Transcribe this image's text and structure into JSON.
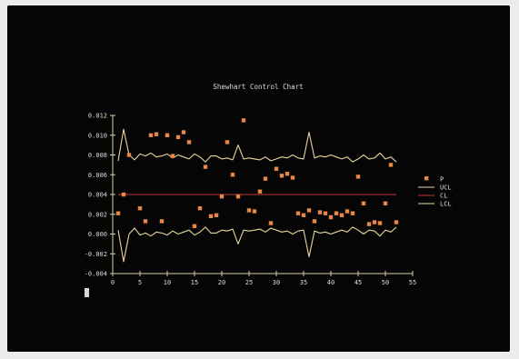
{
  "colors": {
    "background": "#050505",
    "axis": "#d8cfa8",
    "text": "#dcdcdc",
    "points": "#e8874a",
    "ucl": "#e6d79a",
    "cl": "#c0392b",
    "lcl": "#e6d79a"
  },
  "chart_data": {
    "type": "scatter",
    "title": "Shewhart Control Chart",
    "xlabel": "",
    "ylabel": "",
    "xlim": [
      0,
      55
    ],
    "ylim": [
      -0.004,
      0.012
    ],
    "x_ticks": [
      0,
      5,
      10,
      15,
      20,
      25,
      30,
      35,
      40,
      45,
      50,
      55
    ],
    "y_ticks": [
      {
        "value": 0.012,
        "label": "0.012"
      },
      {
        "value": 0.01,
        "label": "0.010"
      },
      {
        "value": 0.008,
        "label": "0.008"
      },
      {
        "value": 0.006,
        "label": "0.006"
      },
      {
        "value": 0.004,
        "label": "0.004"
      },
      {
        "value": 0.002,
        "label": "0.002"
      },
      {
        "value": 0.0,
        "label": "0.000"
      },
      {
        "value": -0.002,
        "label": "-0.002"
      },
      {
        "value": -0.004,
        "label": "-0.004"
      }
    ],
    "grid": false,
    "legend_position": "right",
    "legend": [
      {
        "label": "P",
        "style": "marker",
        "color": "#e8874a"
      },
      {
        "label": "UCL",
        "style": "line",
        "color": "#e6d79a"
      },
      {
        "label": "CL",
        "style": "line",
        "color": "#c0392b"
      },
      {
        "label": "LCL",
        "style": "line",
        "color": "#e6d79a"
      }
    ],
    "series": [
      {
        "name": "P",
        "kind": "points",
        "x": [
          1,
          2,
          3,
          5,
          6,
          7,
          8,
          9,
          10,
          11,
          12,
          13,
          14,
          15,
          16,
          17,
          18,
          19,
          20,
          21,
          22,
          23,
          24,
          25,
          26,
          27,
          28,
          29,
          30,
          31,
          32,
          33,
          34,
          35,
          36,
          37,
          38,
          39,
          40,
          41,
          42,
          43,
          44,
          45,
          46,
          47,
          48,
          49,
          50,
          51,
          52
        ],
        "y": [
          0.0021,
          0.004,
          0.008,
          0.0026,
          0.0013,
          0.01,
          0.0101,
          0.0013,
          0.01,
          0.0079,
          0.0098,
          0.0103,
          0.0093,
          0.0008,
          0.0026,
          0.0068,
          0.0018,
          0.0019,
          0.0038,
          0.0093,
          0.006,
          0.0038,
          0.0115,
          0.0024,
          0.0023,
          0.0043,
          0.0056,
          0.0011,
          0.0066,
          0.0059,
          0.0061,
          0.0057,
          0.0021,
          0.0019,
          0.0024,
          0.0013,
          0.0022,
          0.0021,
          0.0017,
          0.0021,
          0.0019,
          0.0023,
          0.0021,
          0.0058,
          0.0031,
          0.001,
          0.0012,
          0.0011,
          0.0031,
          0.007,
          0.0012
        ]
      },
      {
        "name": "UCL",
        "kind": "line",
        "x": [
          1,
          2,
          3,
          4,
          5,
          6,
          7,
          8,
          9,
          10,
          11,
          12,
          13,
          14,
          15,
          16,
          17,
          18,
          19,
          20,
          21,
          22,
          23,
          24,
          25,
          26,
          27,
          28,
          29,
          30,
          31,
          32,
          33,
          34,
          35,
          36,
          37,
          38,
          39,
          40,
          41,
          42,
          43,
          44,
          45,
          46,
          47,
          48,
          49,
          50,
          51,
          52
        ],
        "y": [
          0.0074,
          0.0106,
          0.008,
          0.0075,
          0.0081,
          0.0079,
          0.0082,
          0.0078,
          0.0079,
          0.0081,
          0.0077,
          0.008,
          0.0078,
          0.0076,
          0.0081,
          0.0078,
          0.0073,
          0.0079,
          0.0079,
          0.0076,
          0.0077,
          0.0075,
          0.009,
          0.0076,
          0.0077,
          0.0076,
          0.0075,
          0.0078,
          0.0074,
          0.0076,
          0.0078,
          0.0077,
          0.008,
          0.0077,
          0.0076,
          0.0103,
          0.0077,
          0.0079,
          0.0078,
          0.008,
          0.0078,
          0.0076,
          0.0078,
          0.0073,
          0.0076,
          0.008,
          0.0076,
          0.0077,
          0.0082,
          0.0076,
          0.0078,
          0.0073
        ]
      },
      {
        "name": "CL",
        "kind": "line",
        "x": [
          1,
          52
        ],
        "y": [
          0.004,
          0.004
        ]
      },
      {
        "name": "LCL",
        "kind": "line",
        "x": [
          1,
          2,
          3,
          4,
          5,
          6,
          7,
          8,
          9,
          10,
          11,
          12,
          13,
          14,
          15,
          16,
          17,
          18,
          19,
          20,
          21,
          22,
          23,
          24,
          25,
          26,
          27,
          28,
          29,
          30,
          31,
          32,
          33,
          34,
          35,
          36,
          37,
          38,
          39,
          40,
          41,
          42,
          43,
          44,
          45,
          46,
          47,
          48,
          49,
          50,
          51,
          52
        ],
        "y": [
          0.0004,
          -0.0028,
          0.0,
          0.0006,
          -0.0001,
          0.0001,
          -0.0002,
          0.0002,
          0.0001,
          -0.0001,
          0.0003,
          0.0,
          0.0002,
          0.0004,
          -0.0001,
          0.0002,
          0.0007,
          0.0001,
          0.0001,
          0.0004,
          0.0003,
          0.0005,
          -0.001,
          0.0004,
          0.0003,
          0.0004,
          0.0005,
          0.0002,
          0.0006,
          0.0004,
          0.0002,
          0.0003,
          0.0,
          0.0003,
          0.0004,
          -0.0023,
          0.0003,
          0.0001,
          0.0002,
          0.0,
          0.0002,
          0.0004,
          0.0002,
          0.0007,
          0.0004,
          0.0,
          0.0004,
          0.0003,
          -0.0002,
          0.0004,
          0.0002,
          0.0007
        ]
      }
    ]
  }
}
